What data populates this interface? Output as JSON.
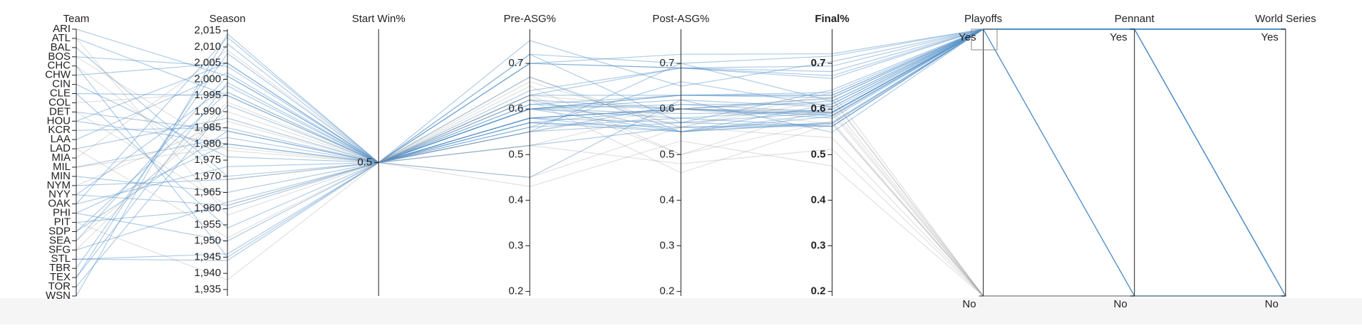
{
  "chart_data": {
    "type": "parallel",
    "highlight_color": "#4f8fc7",
    "base_color": "#9a9a9a",
    "dimensions": [
      {
        "name": "Team",
        "kind": "category",
        "categories": [
          "ARI",
          "ATL",
          "BAL",
          "BOS",
          "CHC",
          "CHW",
          "CIN",
          "CLE",
          "COL",
          "DET",
          "HOU",
          "KCR",
          "LAA",
          "LAD",
          "MIA",
          "MIL",
          "MIN",
          "NYM",
          "NYY",
          "OAK",
          "PHI",
          "PIT",
          "SDP",
          "SEA",
          "SFG",
          "STL",
          "TBR",
          "TEX",
          "TOR",
          "WSN"
        ]
      },
      {
        "name": "Season",
        "kind": "number",
        "lim": [
          1933,
          2015.5
        ],
        "ticks": [
          {
            "value": 2015,
            "label": "2,015"
          },
          {
            "value": 2010,
            "label": "2,010"
          },
          {
            "value": 2005,
            "label": "2,005"
          },
          {
            "value": 2000,
            "label": "2,000"
          },
          {
            "value": 1995,
            "label": "1,995"
          },
          {
            "value": 1990,
            "label": "1,990"
          },
          {
            "value": 1985,
            "label": "1,985"
          },
          {
            "value": 1980,
            "label": "1,980"
          },
          {
            "value": 1975,
            "label": "1,975"
          },
          {
            "value": 1970,
            "label": "1,970"
          },
          {
            "value": 1965,
            "label": "1,965"
          },
          {
            "value": 1960,
            "label": "1,960"
          },
          {
            "value": 1955,
            "label": "1,955"
          },
          {
            "value": 1950,
            "label": "1,950"
          },
          {
            "value": 1945,
            "label": "1,945"
          },
          {
            "value": 1940,
            "label": "1,940"
          },
          {
            "value": 1935,
            "label": "1,935"
          }
        ]
      },
      {
        "name": "Start Win%",
        "kind": "number",
        "lim": [
          0,
          1
        ],
        "ticks": [
          0.5
        ]
      },
      {
        "name": "Pre-ASG%",
        "kind": "number",
        "lim": [
          0.19,
          0.775
        ],
        "ticks": [
          0.7,
          0.6,
          0.5,
          0.4,
          0.3,
          0.2
        ]
      },
      {
        "name": "Post-ASG%",
        "kind": "number",
        "lim": [
          0.19,
          0.775
        ],
        "ticks": [
          0.7,
          0.6,
          0.5,
          0.4,
          0.3,
          0.2
        ]
      },
      {
        "name": "Final%",
        "kind": "number",
        "lim": [
          0.19,
          0.775
        ],
        "ticks": [
          0.7,
          0.6,
          0.5,
          0.4,
          0.3,
          0.2
        ],
        "bold": true
      },
      {
        "name": "Playoffs",
        "kind": "category",
        "categories": [
          "Yes",
          "No"
        ]
      },
      {
        "name": "Pennant",
        "kind": "category",
        "categories": [
          "Yes",
          "No"
        ]
      },
      {
        "name": "World Series",
        "kind": "category",
        "categories": [
          "Yes",
          "No"
        ]
      }
    ],
    "lines": [
      {
        "values": [
          "ARI",
          2001,
          0.5,
          0.6,
          0.55,
          0.568,
          "Yes",
          "Yes",
          "Yes"
        ]
      },
      {
        "values": [
          "ATL",
          1995,
          0.5,
          0.6,
          0.63,
          0.625,
          "Yes",
          "Yes",
          "Yes"
        ]
      },
      {
        "values": [
          "BAL",
          1970,
          0.5,
          0.64,
          0.69,
          0.667,
          "Yes",
          "Yes",
          "Yes"
        ]
      },
      {
        "values": [
          "BOS",
          2004,
          0.5,
          0.56,
          0.66,
          0.605,
          "Yes",
          "Yes",
          "Yes"
        ]
      },
      {
        "values": [
          "CHC",
          1945,
          0.5,
          0.6,
          0.63,
          0.636,
          "Yes",
          "Yes",
          "No"
        ]
      },
      {
        "values": [
          "CHW",
          2005,
          0.5,
          0.67,
          0.55,
          0.611,
          "Yes",
          "Yes",
          "Yes"
        ]
      },
      {
        "values": [
          "CIN",
          1976,
          0.5,
          0.63,
          0.63,
          0.63,
          "Yes",
          "Yes",
          "Yes"
        ]
      },
      {
        "values": [
          "CLE",
          1954,
          0.5,
          0.7,
          0.72,
          0.721,
          "Yes",
          "Yes",
          "No"
        ]
      },
      {
        "values": [
          "COL",
          1996,
          0.5,
          0.52,
          0.48,
          0.512,
          "No",
          "No",
          "No"
        ]
      },
      {
        "values": [
          "DET",
          1984,
          0.5,
          0.72,
          0.57,
          0.642,
          "Yes",
          "Yes",
          "Yes"
        ]
      },
      {
        "values": [
          "HOU",
          1980,
          0.5,
          0.57,
          0.55,
          0.571,
          "Yes",
          "No",
          "No"
        ]
      },
      {
        "values": [
          "KCR",
          1985,
          0.5,
          0.55,
          0.57,
          0.562,
          "Yes",
          "Yes",
          "Yes"
        ]
      },
      {
        "values": [
          "LAA",
          2002,
          0.5,
          0.6,
          0.61,
          0.611,
          "Yes",
          "Yes",
          "Yes"
        ]
      },
      {
        "values": [
          "LAD",
          1988,
          0.5,
          0.58,
          0.55,
          0.584,
          "Yes",
          "Yes",
          "Yes"
        ]
      },
      {
        "values": [
          "MIA",
          2009,
          0.5,
          0.45,
          0.56,
          0.537,
          "No",
          "No",
          "No"
        ]
      },
      {
        "values": [
          "MIL",
          1982,
          0.5,
          0.58,
          0.6,
          0.586,
          "Yes",
          "Yes",
          "No"
        ]
      },
      {
        "values": [
          "MIN",
          1965,
          0.5,
          0.61,
          0.63,
          0.63,
          "Yes",
          "Yes",
          "No"
        ]
      },
      {
        "values": [
          "NYM",
          1969,
          0.5,
          0.55,
          0.7,
          0.617,
          "Yes",
          "Yes",
          "Yes"
        ]
      },
      {
        "values": [
          "NYY",
          1961,
          0.5,
          0.63,
          0.69,
          0.673,
          "Yes",
          "Yes",
          "Yes"
        ]
      },
      {
        "values": [
          "NYY",
          1998,
          0.5,
          0.75,
          0.65,
          0.704,
          "Yes",
          "Yes",
          "Yes"
        ]
      },
      {
        "values": [
          "OAK",
          1973,
          0.5,
          0.58,
          0.6,
          0.58,
          "Yes",
          "Yes",
          "Yes"
        ]
      },
      {
        "values": [
          "PHI",
          1950,
          0.5,
          0.62,
          0.55,
          0.591,
          "Yes",
          "Yes",
          "No"
        ]
      },
      {
        "values": [
          "PIT",
          1960,
          0.5,
          0.61,
          0.6,
          0.617,
          "Yes",
          "Yes",
          "Yes"
        ]
      },
      {
        "values": [
          "SDP",
          1984,
          0.5,
          0.57,
          0.56,
          0.568,
          "Yes",
          "Yes",
          "No"
        ]
      },
      {
        "values": [
          "SEA",
          2001,
          0.5,
          0.72,
          0.7,
          0.716,
          "Yes",
          "No",
          "No"
        ]
      },
      {
        "values": [
          "SFG",
          1962,
          0.5,
          0.62,
          0.6,
          0.624,
          "Yes",
          "Yes",
          "No"
        ]
      },
      {
        "values": [
          "STL",
          1944,
          0.5,
          0.7,
          0.69,
          0.682,
          "Yes",
          "Yes",
          "Yes"
        ]
      },
      {
        "values": [
          "STL",
          1946,
          0.5,
          0.6,
          0.62,
          0.604,
          "Yes",
          "Yes",
          "Yes"
        ]
      },
      {
        "values": [
          "TBR",
          2008,
          0.5,
          0.6,
          0.58,
          0.599,
          "Yes",
          "Yes",
          "No"
        ]
      },
      {
        "values": [
          "TEX",
          1999,
          0.5,
          0.57,
          0.6,
          0.586,
          "Yes",
          "No",
          "No"
        ]
      },
      {
        "values": [
          "TOR",
          1992,
          0.5,
          0.6,
          0.59,
          0.593,
          "Yes",
          "Yes",
          "Yes"
        ]
      },
      {
        "values": [
          "WSN",
          2014,
          0.5,
          0.55,
          0.61,
          0.593,
          "Yes",
          "No",
          "No"
        ]
      },
      {
        "values": [
          "ATL",
          1958,
          0.5,
          0.58,
          0.6,
          0.597,
          "No",
          "No",
          "No"
        ]
      },
      {
        "values": [
          "BOS",
          1978,
          0.5,
          0.65,
          0.5,
          0.607,
          "No",
          "No",
          "No"
        ]
      },
      {
        "values": [
          "CHC",
          1969,
          0.5,
          0.62,
          0.46,
          0.568,
          "No",
          "No",
          "No"
        ]
      },
      {
        "values": [
          "DET",
          1961,
          0.5,
          0.63,
          0.6,
          0.623,
          "No",
          "No",
          "No"
        ]
      },
      {
        "values": [
          "LAD",
          1951,
          0.5,
          0.66,
          0.56,
          0.621,
          "No",
          "No",
          "No"
        ]
      },
      {
        "values": [
          "NYM",
          1987,
          0.5,
          0.52,
          0.6,
          0.568,
          "No",
          "No",
          "No"
        ]
      },
      {
        "values": [
          "OAK",
          2013,
          0.5,
          0.58,
          0.57,
          0.593,
          "Yes",
          "No",
          "No"
        ]
      },
      {
        "values": [
          "SFG",
          1993,
          0.5,
          0.67,
          0.56,
          0.636,
          "No",
          "No",
          "No"
        ]
      },
      {
        "values": [
          "MIL",
          1979,
          0.5,
          0.55,
          0.6,
          0.59,
          "No",
          "No",
          "No"
        ]
      },
      {
        "values": [
          "CLE",
          1995,
          0.5,
          0.7,
          0.69,
          0.694,
          "Yes",
          "Yes",
          "No"
        ]
      },
      {
        "values": [
          "PIT",
          1938,
          0.5,
          0.63,
          0.5,
          0.573,
          "No",
          "No",
          "No"
        ]
      },
      {
        "values": [
          "HOU",
          2005,
          0.5,
          0.45,
          0.62,
          0.549,
          "Yes",
          "Yes",
          "No"
        ]
      },
      {
        "values": [
          "TEX",
          2011,
          0.5,
          0.58,
          0.6,
          0.593,
          "Yes",
          "Yes",
          "No"
        ]
      },
      {
        "values": [
          "SEA",
          1990,
          0.5,
          0.43,
          0.53,
          0.475,
          "No",
          "No",
          "No"
        ]
      },
      {
        "values": [
          "PHI",
          1980,
          0.5,
          0.56,
          0.58,
          0.562,
          "Yes",
          "Yes",
          "Yes"
        ]
      },
      {
        "values": [
          "SDP",
          1996,
          0.5,
          0.52,
          0.56,
          0.562,
          "Yes",
          "No",
          "No"
        ]
      }
    ]
  }
}
